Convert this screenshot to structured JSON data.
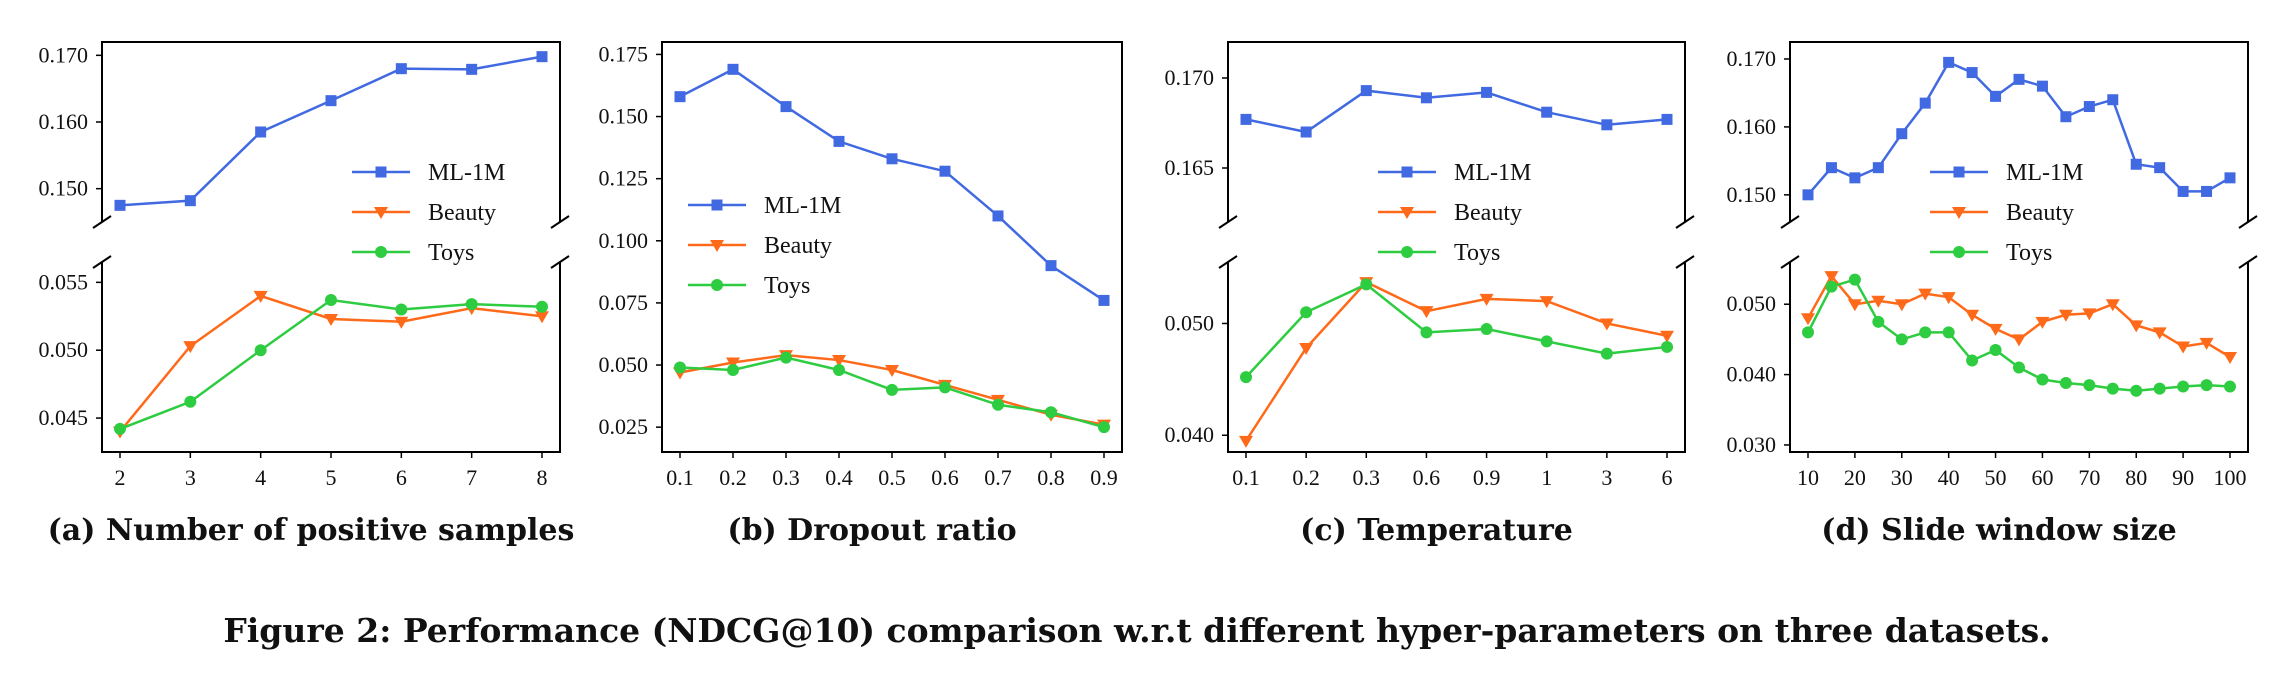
{
  "figure_caption": "Figure 2: Performance (NDCG@10) comparison w.r.t different hyper-parameters on three datasets.",
  "colors": {
    "ML-1M": "#4169e1",
    "Beauty": "#ff6a1a",
    "Toys": "#2ecc40",
    "axis": "#000000"
  },
  "chart_data": [
    {
      "type": "line",
      "caption": "(a) Number of positive samples",
      "title": "",
      "xlabel": "",
      "ylabel": "",
      "broken_y_axis": true,
      "legend": "top-right, upper panel",
      "categories": [
        "2",
        "3",
        "4",
        "5",
        "6",
        "7",
        "8"
      ],
      "upper": {
        "ylim": [
          0.145,
          0.172
        ],
        "yticks": [
          0.15,
          0.16,
          0.17
        ],
        "yticklabels": [
          "0.150",
          "0.160",
          "0.170"
        ]
      },
      "lower": {
        "ylim": [
          0.0425,
          0.0565
        ],
        "yticks": [
          0.045,
          0.05,
          0.055
        ],
        "yticklabels": [
          "0.045",
          "0.050",
          "0.055"
        ]
      },
      "series": [
        {
          "name": "ML-1M",
          "marker": "square",
          "panel": "upper",
          "values": [
            0.1475,
            0.1482,
            0.1585,
            0.1632,
            0.168,
            0.1679,
            0.1698
          ]
        },
        {
          "name": "Beauty",
          "marker": "triangle-down",
          "panel": "lower",
          "values": [
            0.044,
            0.0503,
            0.054,
            0.0523,
            0.0521,
            0.0531,
            0.0525
          ]
        },
        {
          "name": "Toys",
          "marker": "circle",
          "panel": "lower",
          "values": [
            0.0442,
            0.0462,
            0.05,
            0.0537,
            0.053,
            0.0534,
            0.0532
          ]
        }
      ]
    },
    {
      "type": "line",
      "caption": "(b) Dropout ratio",
      "title": "",
      "xlabel": "",
      "ylabel": "",
      "broken_y_axis": false,
      "legend": "center-left",
      "categories": [
        "0.1",
        "0.2",
        "0.3",
        "0.4",
        "0.5",
        "0.6",
        "0.7",
        "0.8",
        "0.9"
      ],
      "single": {
        "ylim": [
          0.015,
          0.18
        ],
        "yticks": [
          0.025,
          0.05,
          0.075,
          0.1,
          0.125,
          0.15,
          0.175
        ],
        "yticklabels": [
          "0.025",
          "0.050",
          "0.075",
          "0.100",
          "0.125",
          "0.150",
          "0.175"
        ]
      },
      "series": [
        {
          "name": "ML-1M",
          "marker": "square",
          "panel": "single",
          "values": [
            0.158,
            0.169,
            0.154,
            0.14,
            0.133,
            0.128,
            0.11,
            0.09,
            0.076
          ]
        },
        {
          "name": "Beauty",
          "marker": "triangle-down",
          "panel": "single",
          "values": [
            0.047,
            0.051,
            0.054,
            0.052,
            0.048,
            0.042,
            0.036,
            0.03,
            0.026
          ]
        },
        {
          "name": "Toys",
          "marker": "circle",
          "panel": "single",
          "values": [
            0.049,
            0.048,
            0.053,
            0.048,
            0.04,
            0.041,
            0.034,
            0.031,
            0.025
          ]
        }
      ]
    },
    {
      "type": "line",
      "caption": "(c) Temperature",
      "title": "",
      "xlabel": "",
      "ylabel": "",
      "broken_y_axis": true,
      "legend": "top-right, upper panel",
      "categories": [
        "0.1",
        "0.2",
        "0.3",
        "0.6",
        "0.9",
        "1",
        "3",
        "6"
      ],
      "upper": {
        "ylim": [
          0.162,
          0.172
        ],
        "yticks": [
          0.165,
          0.17
        ],
        "yticklabels": [
          "0.165",
          "0.170"
        ]
      },
      "lower": {
        "ylim": [
          0.0385,
          0.0555
        ],
        "yticks": [
          0.04,
          0.05
        ],
        "yticklabels": [
          "0.040",
          "0.050"
        ]
      },
      "series": [
        {
          "name": "ML-1M",
          "marker": "square",
          "panel": "upper",
          "values": [
            0.1677,
            0.167,
            0.1693,
            0.1689,
            0.1692,
            0.1681,
            0.1674,
            0.1677
          ]
        },
        {
          "name": "Beauty",
          "marker": "triangle-down",
          "panel": "lower",
          "values": [
            0.0395,
            0.0478,
            0.0537,
            0.0511,
            0.0522,
            0.052,
            0.05,
            0.0489
          ]
        },
        {
          "name": "Toys",
          "marker": "circle",
          "panel": "lower",
          "values": [
            0.0452,
            0.051,
            0.0535,
            0.0492,
            0.0495,
            0.0484,
            0.0473,
            0.0479
          ]
        }
      ]
    },
    {
      "type": "line",
      "caption": "(d) Slide window size",
      "title": "",
      "xlabel": "",
      "ylabel": "",
      "broken_y_axis": true,
      "legend": "top-right, upper panel",
      "categories": [
        "10",
        "15",
        "20",
        "25",
        "30",
        "35",
        "40",
        "45",
        "50",
        "55",
        "60",
        "65",
        "70",
        "75",
        "80",
        "85",
        "90",
        "95",
        "100"
      ],
      "x_tick_labels": [
        "10",
        "20",
        "30",
        "40",
        "50",
        "60",
        "70",
        "80",
        "90",
        "100"
      ],
      "upper": {
        "ylim": [
          0.146,
          0.1725
        ],
        "yticks": [
          0.15,
          0.16,
          0.17
        ],
        "yticklabels": [
          "0.150",
          "0.160",
          "0.170"
        ]
      },
      "lower": {
        "ylim": [
          0.029,
          0.056
        ],
        "yticks": [
          0.03,
          0.04,
          0.05
        ],
        "yticklabels": [
          "0.030",
          "0.040",
          "0.050"
        ]
      },
      "series": [
        {
          "name": "ML-1M",
          "marker": "square",
          "panel": "upper",
          "values": [
            0.15,
            0.154,
            0.1525,
            0.154,
            0.159,
            0.1635,
            0.1695,
            0.168,
            0.1645,
            0.167,
            0.166,
            0.1615,
            0.163,
            0.164,
            0.1545,
            0.154,
            0.1505,
            0.1505,
            0.1525
          ]
        },
        {
          "name": "Beauty",
          "marker": "triangle-down",
          "panel": "lower",
          "values": [
            0.048,
            0.054,
            0.05,
            0.0505,
            0.05,
            0.0515,
            0.051,
            0.0485,
            0.0465,
            0.045,
            0.0475,
            0.0485,
            0.0487,
            0.05,
            0.047,
            0.046,
            0.044,
            0.0445,
            0.0425
          ]
        },
        {
          "name": "Toys",
          "marker": "circle",
          "panel": "lower",
          "values": [
            0.046,
            0.0525,
            0.0535,
            0.0475,
            0.045,
            0.046,
            0.046,
            0.042,
            0.0435,
            0.041,
            0.0393,
            0.0388,
            0.0385,
            0.038,
            0.0377,
            0.038,
            0.0383,
            0.0385,
            0.0383
          ]
        }
      ]
    }
  ]
}
